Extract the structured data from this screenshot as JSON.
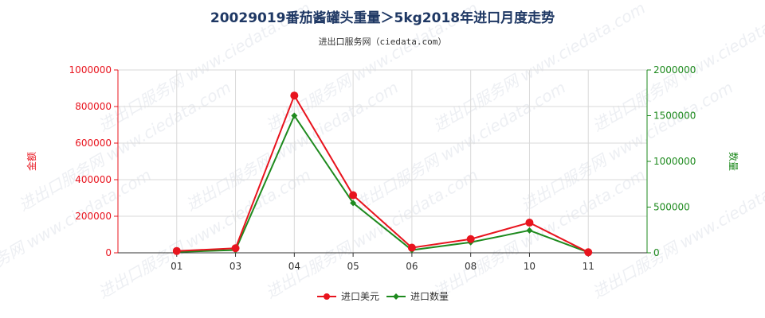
{
  "chart_data": {
    "type": "line",
    "title": "20029019番茄酱罐头重量＞5kg2018年进口月度走势",
    "subtitle": "进出口服务网（ciedata.com）",
    "watermark": "进出口服务网 www.ciedata.com",
    "categories": [
      "01",
      "03",
      "04",
      "05",
      "06",
      "08",
      "10",
      "11"
    ],
    "ylabel_left": "金额",
    "ylabel_right": "数量",
    "ylim_left": [
      0,
      1000000
    ],
    "ylim_right": [
      0,
      2000000
    ],
    "yticks_left": [
      "0",
      "200000",
      "400000",
      "600000",
      "800000",
      "1000000"
    ],
    "yticks_right": [
      "0",
      "500000",
      "1000000",
      "1500000",
      "2000000"
    ],
    "grid": true,
    "legend_position": "bottom",
    "series": [
      {
        "name": "进口美元",
        "axis": "left",
        "color": "#e8141e",
        "values": [
          10000,
          25000,
          860000,
          315000,
          28000,
          75000,
          165000,
          3000
        ]
      },
      {
        "name": "进口数量",
        "axis": "right",
        "color": "#1e8a1e",
        "values": [
          10000,
          30000,
          1500000,
          545000,
          30000,
          115000,
          245000,
          5000
        ]
      }
    ]
  }
}
